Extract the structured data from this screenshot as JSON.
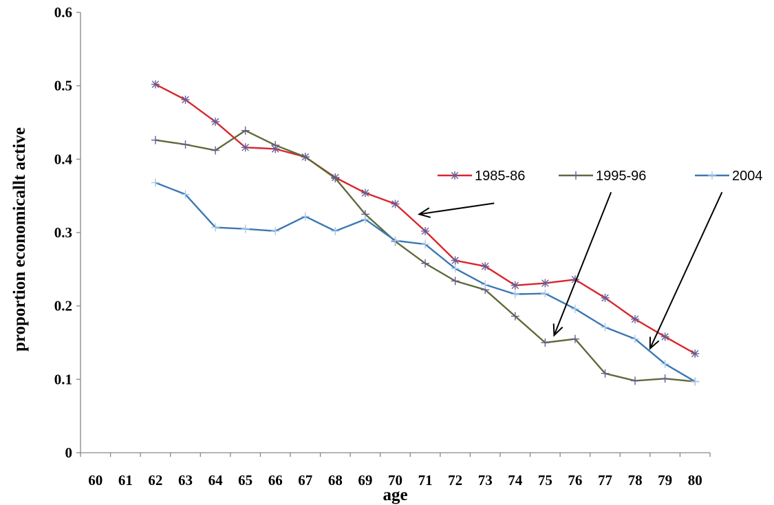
{
  "chart_data": {
    "type": "line",
    "title": "",
    "xlabel": "age",
    "ylabel": "proportion economicallt active",
    "x": [
      "60",
      "61",
      "62",
      "63",
      "64",
      "65",
      "66",
      "67",
      "68",
      "69",
      "70",
      "71",
      "72",
      "73",
      "74",
      "75",
      "76",
      "77",
      "78",
      "79",
      "80"
    ],
    "ylim": [
      0,
      0.6
    ],
    "yticks": [
      "0",
      "0.1",
      "0.2",
      "0.3",
      "0.4",
      "0.5",
      "0.6"
    ],
    "grid": false,
    "legend_position": "right, inside plot area",
    "series": [
      {
        "name": "1985-86",
        "color": "#d9252c",
        "marker_color": "#6b5a91",
        "marker": "asterisk",
        "values": [
          null,
          null,
          0.502,
          0.481,
          0.451,
          0.416,
          0.414,
          0.403,
          0.375,
          0.354,
          0.339,
          0.302,
          0.262,
          0.254,
          0.228,
          0.231,
          0.236,
          0.211,
          0.182,
          0.158,
          0.135
        ]
      },
      {
        "name": "1995-96",
        "color": "#5f6a3a",
        "marker_color": "#6b5a91",
        "marker": "plus",
        "values": [
          null,
          null,
          0.426,
          0.42,
          0.412,
          0.439,
          0.419,
          0.403,
          0.374,
          0.325,
          0.288,
          0.258,
          0.234,
          0.222,
          0.186,
          0.15,
          0.155,
          0.108,
          0.098,
          0.101,
          0.097
        ]
      },
      {
        "name": "2004",
        "color": "#3a78b2",
        "marker_color": "#a9c8e8",
        "marker": "plus",
        "values": [
          null,
          null,
          0.368,
          0.352,
          0.307,
          0.305,
          0.302,
          0.322,
          0.302,
          0.318,
          0.289,
          0.284,
          0.251,
          0.229,
          0.216,
          0.217,
          0.196,
          0.171,
          0.155,
          0.121,
          0.097
        ]
      }
    ],
    "annotations": [
      {
        "type": "arrow",
        "for_series": "1985-86",
        "from": [
          73.3,
          0.34
        ],
        "to": [
          70.8,
          0.325
        ]
      },
      {
        "type": "arrow",
        "for_series": "1995-96",
        "from": [
          77.2,
          0.355
        ],
        "to": [
          75.3,
          0.16
        ]
      },
      {
        "type": "arrow",
        "for_series": "2004",
        "from": [
          80.9,
          0.355
        ],
        "to": [
          78.5,
          0.142
        ]
      }
    ]
  }
}
